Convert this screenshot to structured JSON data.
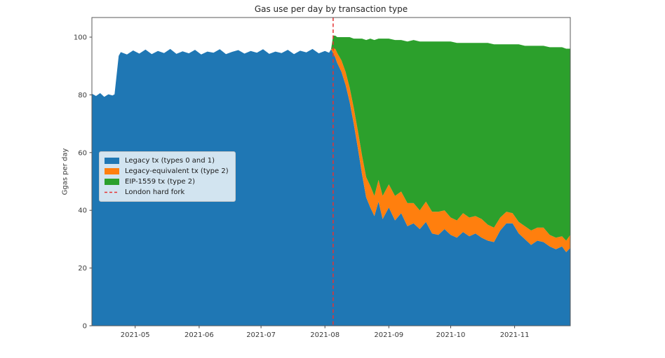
{
  "chart_data": {
    "type": "area",
    "stacked": true,
    "title": "Gas use per day by transaction type",
    "xlabel": "",
    "ylabel": "Ggas per day",
    "grid": false,
    "legend_position": "center-left",
    "ylim": [
      0,
      106.8
    ],
    "y_ticks": [
      0,
      20,
      40,
      60,
      80,
      100
    ],
    "y_tick_labels": [
      "0",
      "20",
      "40",
      "60",
      "80",
      "100"
    ],
    "x_tick_labels": [
      "2021-05",
      "2021-06",
      "2021-07",
      "2021-08",
      "2021-09",
      "2021-10",
      "2021-11"
    ],
    "x_tick_days": [
      21,
      52,
      82,
      113,
      144,
      174,
      205
    ],
    "x_start_day_label": "2021-04-10",
    "days": [
      0,
      2,
      4,
      6,
      8,
      10,
      11,
      12,
      13,
      14,
      17,
      20,
      23,
      26,
      29,
      32,
      35,
      38,
      41,
      44,
      47,
      50,
      53,
      56,
      59,
      62,
      65,
      68,
      71,
      74,
      77,
      80,
      83,
      86,
      89,
      92,
      95,
      98,
      101,
      104,
      107,
      110,
      113,
      115,
      116,
      117,
      118,
      119,
      121,
      123,
      125,
      127,
      129,
      131,
      133,
      135,
      137,
      139,
      141,
      144,
      147,
      150,
      153,
      156,
      159,
      162,
      165,
      168,
      171,
      174,
      177,
      180,
      183,
      186,
      189,
      192,
      195,
      198,
      201,
      204,
      207,
      210,
      213,
      216,
      219,
      222,
      225,
      228,
      230,
      232
    ],
    "series": [
      {
        "name": "Legacy tx (types 0 and 1)",
        "color": "#1f77b4",
        "values": [
          80.4,
          79.6,
          80.6,
          79.3,
          80.2,
          79.8,
          80.2,
          87,
          93.5,
          94.8,
          94.0,
          95.4,
          94.3,
          95.7,
          94.1,
          95.2,
          94.5,
          95.9,
          94.2,
          95.1,
          94.4,
          95.6,
          94.0,
          95.0,
          94.6,
          95.8,
          94.1,
          94.9,
          95.5,
          94.3,
          95.2,
          94.6,
          95.8,
          94.2,
          95.0,
          94.5,
          95.6,
          94.1,
          95.3,
          94.7,
          95.9,
          94.4,
          95.2,
          94.6,
          95.8,
          94.5,
          93,
          91,
          88,
          83.5,
          77.5,
          70,
          61.5,
          52.5,
          44.5,
          41,
          38,
          43,
          37,
          41,
          36.5,
          39,
          34.5,
          35.5,
          33.5,
          36,
          32,
          31.5,
          33.5,
          31.5,
          30.5,
          32.5,
          31,
          32,
          30.5,
          29.5,
          29,
          33,
          35.5,
          35.5,
          32,
          30,
          28,
          29.5,
          29,
          27.5,
          26.5,
          27.5,
          25.5,
          27
        ]
      },
      {
        "name": "Legacy-equivalent tx (type 2)",
        "color": "#ff7f0e",
        "values": [
          0,
          0,
          0,
          0,
          0,
          0,
          0,
          0,
          0,
          0,
          0,
          0,
          0,
          0,
          0,
          0,
          0,
          0,
          0,
          0,
          0,
          0,
          0,
          0,
          0,
          0,
          0,
          0,
          0,
          0,
          0,
          0,
          0,
          0,
          0,
          0,
          0,
          0,
          0,
          0,
          0,
          0,
          0,
          0,
          0,
          1.5,
          3,
          3.5,
          4,
          4.5,
          5,
          5.5,
          6,
          6.5,
          7,
          7.5,
          7,
          7.5,
          8,
          8,
          8.5,
          7.5,
          8,
          7,
          6.5,
          7,
          7.5,
          8,
          6.5,
          6,
          6,
          6.5,
          6.5,
          6,
          6.5,
          5.5,
          5,
          4.5,
          4,
          3.5,
          4,
          4.5,
          5,
          4.5,
          5,
          4,
          4,
          3.5,
          4,
          4.5
        ]
      },
      {
        "name": "EIP-1559 tx (type 2)",
        "color": "#2ca02c",
        "values": [
          0,
          0,
          0,
          0,
          0,
          0,
          0,
          0,
          0,
          0,
          0,
          0,
          0,
          0,
          0,
          0,
          0,
          0,
          0,
          0,
          0,
          0,
          0,
          0,
          0,
          0,
          0,
          0,
          0,
          0,
          0,
          0,
          0,
          0,
          0,
          0,
          0,
          0,
          0,
          0,
          0,
          0,
          0,
          0,
          0,
          4.5,
          4.5,
          5.5,
          8,
          12,
          17.5,
          24,
          32,
          40.5,
          47.5,
          51,
          54,
          49,
          54.5,
          50.5,
          54,
          52.5,
          56,
          56.5,
          58.5,
          55.5,
          59,
          59,
          58.5,
          61,
          61.5,
          59,
          60.5,
          60,
          61,
          63,
          63.5,
          60,
          58,
          58.5,
          61.5,
          62.5,
          64,
          63,
          63,
          65,
          66,
          65.5,
          66.5,
          64.5
        ]
      }
    ],
    "annotation": {
      "label": "London hard fork",
      "day": 117,
      "color": "#e53333",
      "style": "dashed-vertical-line"
    }
  }
}
